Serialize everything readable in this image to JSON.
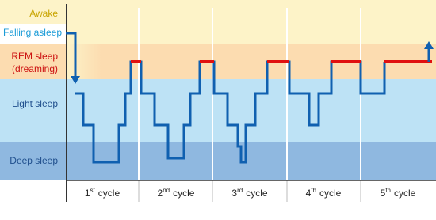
{
  "stages": {
    "awake": "Awake",
    "falling_asleep": "Falling asleep",
    "rem": [
      "REM sleep",
      "(dreaming)"
    ],
    "light": "Light sleep",
    "deep": "Deep sleep"
  },
  "cycles": [
    {
      "num": "1",
      "sup": "st",
      "label": "cycle"
    },
    {
      "num": "2",
      "sup": "nd",
      "label": "cycle"
    },
    {
      "num": "3",
      "sup": "rd",
      "label": "cycle"
    },
    {
      "num": "4",
      "sup": "th",
      "label": "cycle"
    },
    {
      "num": "5",
      "sup": "th",
      "label": "cycle"
    }
  ]
}
